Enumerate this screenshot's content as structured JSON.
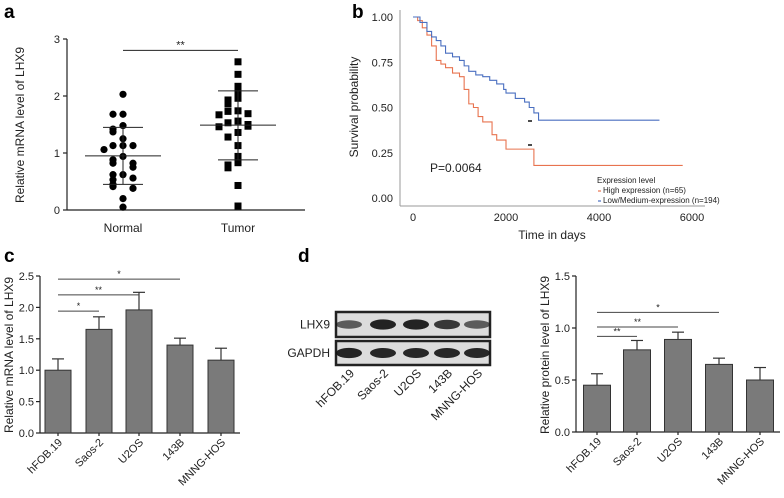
{
  "panels": {
    "a": "a",
    "b": "b",
    "c": "c",
    "d": "d"
  },
  "colors": {
    "bar": "#7a7a7a",
    "bar_stroke": "#333333",
    "high": "#e8734f",
    "low": "#4a6fc0",
    "blot_bg": "#dcdcdc"
  },
  "chart_data": [
    {
      "type": "scatter",
      "panel": "a",
      "ylabel": "Relative mRNA level of LHX9",
      "xlabel": "",
      "ylim": [
        0,
        3
      ],
      "yticks": [
        "0",
        "1",
        "2",
        "3"
      ],
      "categories": [
        "Normal",
        "Tumor"
      ],
      "series": [
        {
          "name": "Normal",
          "marker": "circle",
          "values": [
            2.03,
            1.68,
            1.68,
            1.48,
            1.42,
            1.37,
            1.25,
            1.13,
            1.13,
            1.13,
            1.06,
            0.94,
            0.88,
            0.82,
            0.82,
            0.75,
            0.62,
            0.62,
            0.56,
            0.53,
            0.45,
            0.41,
            0.38,
            0.2,
            0.05
          ],
          "mean": 0.95,
          "sd_upper": 1.45,
          "sd_lower": 0.45
        },
        {
          "name": "Tumor",
          "marker": "square",
          "values": [
            2.6,
            2.38,
            2.17,
            2.06,
            1.96,
            1.93,
            1.86,
            1.74,
            1.73,
            1.69,
            1.67,
            1.56,
            1.53,
            1.5,
            1.47,
            1.46,
            1.36,
            1.28,
            1.13,
            0.94,
            0.83,
            0.79,
            0.74,
            0.43,
            0.07
          ],
          "mean": 1.49,
          "sd_upper": 2.09,
          "sd_lower": 0.88
        }
      ],
      "significance": [
        {
          "from": 0,
          "to": 1,
          "level": 2.8,
          "label": "**"
        }
      ]
    },
    {
      "type": "line",
      "panel": "b",
      "ylabel": "Survival probability",
      "xlabel": "Time in days",
      "xlim": [
        0,
        6000
      ],
      "ylim": [
        0,
        1
      ],
      "xticks": [
        {
          "v": 0,
          "label": "0"
        },
        {
          "v": 2000,
          "label": "2000"
        },
        {
          "v": 4000,
          "label": "4000"
        },
        {
          "v": 6000,
          "label": "6000"
        }
      ],
      "yticks": [
        {
          "v": 1,
          "label": "1.00"
        },
        {
          "v": 0.75,
          "label": "0.75"
        },
        {
          "v": 0.5,
          "label": "0.50"
        },
        {
          "v": 0.25,
          "label": "0.25"
        },
        {
          "v": 0,
          "label": "0.00"
        }
      ],
      "annotation": "P=0.0064",
      "legend": {
        "title": "Expression level",
        "placement": "bottom-right"
      },
      "series": [
        {
          "name": "High expression (n=65)",
          "color": "#e8734f",
          "x": [
            0,
            100,
            200,
            300,
            400,
            500,
            600,
            700,
            850,
            1000,
            1100,
            1200,
            1300,
            1400,
            1500,
            1700,
            1800,
            2000,
            2600,
            2600,
            5800
          ],
          "y": [
            1,
            0.98,
            0.94,
            0.9,
            0.84,
            0.76,
            0.74,
            0.72,
            0.69,
            0.67,
            0.6,
            0.52,
            0.5,
            0.45,
            0.42,
            0.35,
            0.32,
            0.27,
            0.27,
            0.18,
            0.18
          ]
        },
        {
          "name": "Low/Medium-expression (n=194)",
          "color": "#4a6fc0",
          "x": [
            0,
            150,
            300,
            400,
            500,
            600,
            700,
            850,
            1000,
            1100,
            1200,
            1350,
            1500,
            1650,
            1800,
            1950,
            2000,
            2200,
            2400,
            2500,
            2600,
            2700,
            5300
          ],
          "y": [
            1,
            0.97,
            0.92,
            0.89,
            0.87,
            0.84,
            0.8,
            0.78,
            0.76,
            0.73,
            0.7,
            0.68,
            0.67,
            0.65,
            0.63,
            0.6,
            0.58,
            0.55,
            0.53,
            0.5,
            0.47,
            0.43,
            0.43
          ]
        }
      ]
    },
    {
      "type": "bar",
      "panel": "c",
      "ylabel": "Relative mRNA level of LHX9",
      "xlabel": "",
      "ylim": [
        0,
        2.5
      ],
      "yticks": [
        "0.0",
        "0.5",
        "1.0",
        "1.5",
        "2.0",
        "2.5"
      ],
      "categories": [
        "hFOB.19",
        "Saos-2",
        "U2OS",
        "143B",
        "MNNG-HOS"
      ],
      "values": [
        1.0,
        1.65,
        1.96,
        1.4,
        1.16
      ],
      "errors": [
        0.18,
        0.2,
        0.28,
        0.11,
        0.19
      ],
      "significance": [
        {
          "from": 0,
          "to": 1,
          "level": 1.94,
          "label": "*"
        },
        {
          "from": 0,
          "to": 2,
          "level": 2.2,
          "label": "**"
        },
        {
          "from": 0,
          "to": 3,
          "level": 2.45,
          "label": "*"
        }
      ]
    },
    {
      "type": "bar",
      "panel": "d",
      "ylabel": "Relative protein level of LHX9",
      "xlabel": "",
      "ylim": [
        0,
        1.5
      ],
      "yticks": [
        "0.0",
        "0.5",
        "1.0",
        "1.5"
      ],
      "categories": [
        "hFOB.19",
        "Saos-2",
        "U2OS",
        "143B",
        "MNNG-HOS"
      ],
      "values": [
        0.45,
        0.79,
        0.89,
        0.65,
        0.5
      ],
      "errors": [
        0.11,
        0.09,
        0.07,
        0.06,
        0.12
      ],
      "significance": [
        {
          "from": 0,
          "to": 1,
          "level": 0.92,
          "label": "**"
        },
        {
          "from": 0,
          "to": 2,
          "level": 1.01,
          "label": "**"
        },
        {
          "from": 0,
          "to": 3,
          "level": 1.15,
          "label": "*"
        }
      ]
    }
  ],
  "blot": {
    "rows": [
      {
        "label": "LHX9",
        "intensity": [
          0.55,
          0.95,
          0.95,
          0.8,
          0.55
        ]
      },
      {
        "label": "GAPDH",
        "intensity": [
          0.95,
          0.92,
          0.92,
          0.92,
          0.92
        ]
      }
    ],
    "lanes": [
      "hFOB.19",
      "Saos-2",
      "U2OS",
      "143B",
      "MNNG-HOS"
    ]
  }
}
